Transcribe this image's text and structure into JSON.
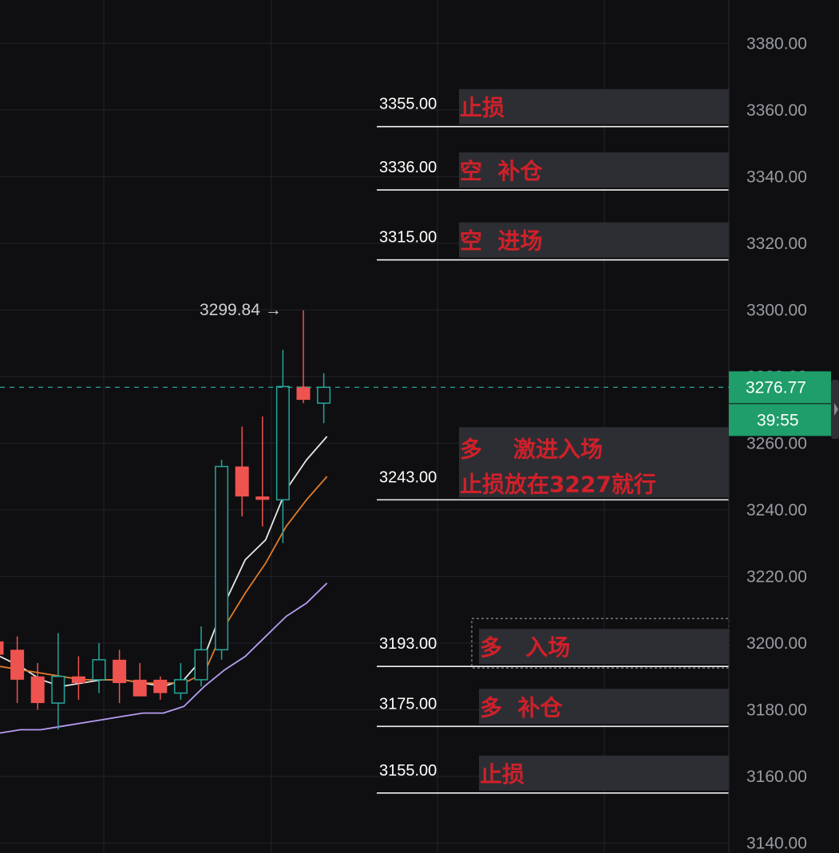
{
  "chart_data": {
    "type": "candlestick",
    "y_axis": {
      "ticks": [
        "3380.00",
        "3360.00",
        "3340.00",
        "3320.00",
        "3300.00",
        "3280.00",
        "3260.00",
        "3240.00",
        "3220.00",
        "3200.00",
        "3180.00",
        "3160.00",
        "3140.00"
      ],
      "range": [
        3137,
        3393
      ]
    },
    "current_price": "3276.77",
    "countdown": "39:55",
    "peak_label": "3299.84 →",
    "candles": [
      {
        "o": 3200.5,
        "h": 3203,
        "l": 3193,
        "c": 3196.5
      },
      {
        "o": 3198,
        "h": 3202,
        "l": 3182,
        "c": 3189
      },
      {
        "o": 3190,
        "h": 3194,
        "l": 3180,
        "c": 3182
      },
      {
        "o": 3182,
        "h": 3203,
        "l": 3174,
        "c": 3190
      },
      {
        "o": 3190,
        "h": 3196,
        "l": 3183,
        "c": 3188
      },
      {
        "o": 3189,
        "h": 3200,
        "l": 3185,
        "c": 3195
      },
      {
        "o": 3195,
        "h": 3198,
        "l": 3182,
        "c": 3188
      },
      {
        "o": 3189,
        "h": 3194,
        "l": 3184,
        "c": 3184
      },
      {
        "o": 3189,
        "h": 3190,
        "l": 3183,
        "c": 3185
      },
      {
        "o": 3185,
        "h": 3194,
        "l": 3183,
        "c": 3189
      },
      {
        "o": 3189,
        "h": 3205,
        "l": 3187,
        "c": 3198
      },
      {
        "o": 3198,
        "h": 3255,
        "l": 3195,
        "c": 3253
      },
      {
        "o": 3253,
        "h": 3265,
        "l": 3238,
        "c": 3244
      },
      {
        "o": 3244,
        "h": 3268,
        "l": 3235,
        "c": 3243
      },
      {
        "o": 3243,
        "h": 3288,
        "l": 3230,
        "c": 3277
      },
      {
        "o": 3277,
        "h": 3299.84,
        "l": 3272,
        "c": 3273
      },
      {
        "o": 3272,
        "h": 3281,
        "l": 3266,
        "c": 3276.77
      }
    ],
    "ma_series": [
      {
        "color": "#e8e8e8",
        "values": [
          3196,
          3193,
          3189,
          3187,
          3188,
          3189,
          3189,
          3188,
          3187,
          3189,
          3196,
          3212,
          3225,
          3231,
          3246,
          3255,
          3262
        ]
      },
      {
        "color": "#e07b2a",
        "values": [
          3193,
          3192,
          3191,
          3190,
          3189,
          3189,
          3189,
          3188,
          3188,
          3188,
          3191,
          3205,
          3215,
          3224,
          3235,
          3243,
          3250
        ]
      },
      {
        "color": "#b89cf5",
        "values": [
          3173,
          3174,
          3174,
          3175,
          3176,
          3177,
          3178,
          3179,
          3179,
          3181,
          3187,
          3192,
          3196,
          3202,
          3208,
          3212,
          3218
        ]
      }
    ],
    "levels": [
      {
        "price": "3355.00",
        "value": 3355,
        "label_lines": [
          "止损"
        ]
      },
      {
        "price": "3336.00",
        "value": 3336,
        "label_lines": [
          "空  补仓"
        ]
      },
      {
        "price": "3315.00",
        "value": 3315,
        "label_lines": [
          "空  进场"
        ]
      },
      {
        "price": "3243.00",
        "value": 3243,
        "label_lines": [
          "多    激进入场",
          "止损放在3227就行"
        ]
      },
      {
        "price": "3193.00",
        "value": 3193,
        "label_lines": [
          "多   入场"
        ]
      },
      {
        "price": "3175.00",
        "value": 3175,
        "label_lines": [
          "多  补仓"
        ]
      },
      {
        "price": "3155.00",
        "value": 3155,
        "label_lines": [
          "止损"
        ]
      }
    ]
  },
  "colors": {
    "up": "#26a69a",
    "down": "#ef5350",
    "badge": "#1f9d6a",
    "background": "#0f0f11",
    "grid": "#22232a",
    "level_label": "#d0202a"
  }
}
